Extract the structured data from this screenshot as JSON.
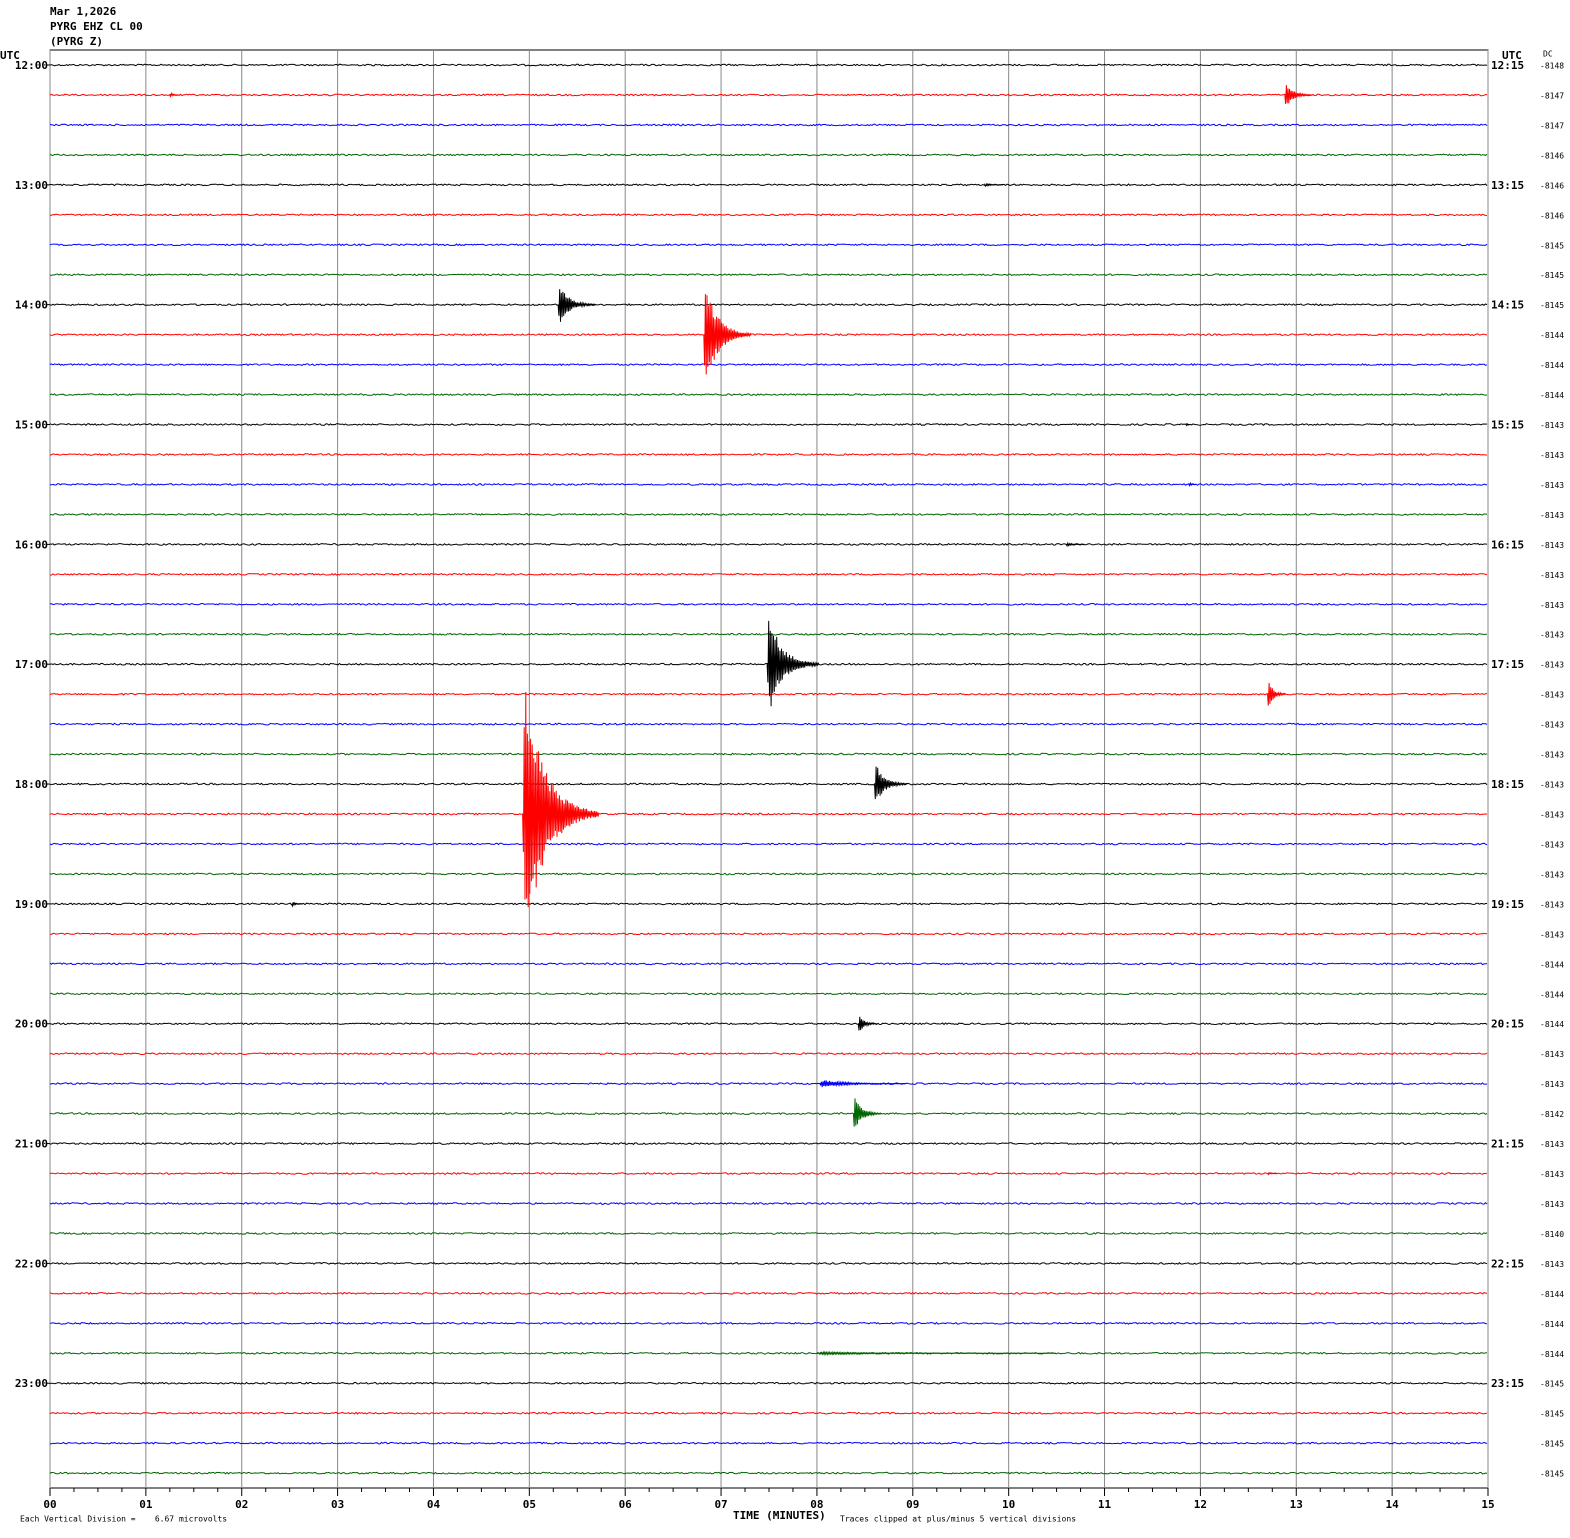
{
  "header": {
    "date": "Mar 1,2026",
    "station": "PYRG EHZ CL 00",
    "component": "(PYRG Z)"
  },
  "left_axis": {
    "title": "UTC",
    "labels": [
      "12:00",
      "13:00",
      "14:00",
      "15:00",
      "16:00",
      "17:00",
      "18:00",
      "19:00",
      "20:00",
      "21:00",
      "22:00",
      "23:00"
    ]
  },
  "right_axis": {
    "title": "UTC",
    "labels": [
      "12:15",
      "13:15",
      "14:15",
      "15:15",
      "16:15",
      "17:15",
      "18:15",
      "19:15",
      "20:15",
      "21:15",
      "22:15",
      "23:15"
    ]
  },
  "dc": {
    "title": "DC",
    "values": [
      -8148,
      -8147,
      -8147,
      -8146,
      -8146,
      -8146,
      -8145,
      -8145,
      -8145,
      -8144,
      -8144,
      -8144,
      -8143,
      -8143,
      -8143,
      -8143,
      -8143,
      -8143,
      -8143,
      -8143,
      -8143,
      -8143,
      -8143,
      -8143,
      -8143,
      -8143,
      -8143,
      -8143,
      -8143,
      -8143,
      -8144,
      -8144,
      -8144,
      -8143,
      -8143,
      -8142,
      -8143,
      -8143,
      -8143,
      -8140,
      -8143,
      -8144,
      -8144,
      -8144,
      -8145,
      -8145,
      -8145,
      -8145
    ]
  },
  "trace_colors": [
    "#000000",
    "#ff0000",
    "#0000ff",
    "#006400"
  ],
  "x_axis": {
    "title": "TIME (MINUTES)",
    "xlim": [
      0,
      15
    ],
    "xticks": [
      {
        "value": 0,
        "label": "00"
      },
      {
        "value": 1,
        "label": "01"
      },
      {
        "value": 2,
        "label": "02"
      },
      {
        "value": 3,
        "label": "03"
      },
      {
        "value": 4,
        "label": "04"
      },
      {
        "value": 5,
        "label": "05"
      },
      {
        "value": 6,
        "label": "06"
      },
      {
        "value": 7,
        "label": "07"
      },
      {
        "value": 8,
        "label": "08"
      },
      {
        "value": 9,
        "label": "09"
      },
      {
        "value": 10,
        "label": "10"
      },
      {
        "value": 11,
        "label": "11"
      },
      {
        "value": 12,
        "label": "12"
      },
      {
        "value": 13,
        "label": "13"
      },
      {
        "value": 14,
        "label": "14"
      },
      {
        "value": 15,
        "label": "15"
      }
    ]
  },
  "footer": {
    "scale": "Each Vertical Division =    6.67 microvolts",
    "clip": "Traces clipped at plus/minus 5 vertical divisions"
  },
  "events": [
    {
      "row": 1,
      "minute": 12.88,
      "amplitude": 0.5,
      "duration": 0.3
    },
    {
      "row": 1,
      "minute": 1.25,
      "amplitude": 0.1,
      "duration": 0.1
    },
    {
      "row": 4,
      "minute": 9.75,
      "amplitude": 0.06,
      "duration": 0.2
    },
    {
      "row": 8,
      "minute": 5.3,
      "amplitude": 0.75,
      "duration": 0.4
    },
    {
      "row": 9,
      "minute": 6.82,
      "amplitude": 2.1,
      "duration": 0.5
    },
    {
      "row": 12,
      "minute": 11.85,
      "amplitude": 0.08,
      "duration": 0.05
    },
    {
      "row": 14,
      "minute": 11.88,
      "amplitude": 0.1,
      "duration": 0.08
    },
    {
      "row": 16,
      "minute": 10.6,
      "amplitude": 0.06,
      "duration": 0.2
    },
    {
      "row": 20,
      "minute": 7.48,
      "amplitude": 1.9,
      "duration": 0.55
    },
    {
      "row": 21,
      "minute": 12.7,
      "amplitude": 0.6,
      "duration": 0.2
    },
    {
      "row": 24,
      "minute": 8.6,
      "amplitude": 0.8,
      "duration": 0.35
    },
    {
      "row": 25,
      "minute": 4.93,
      "amplitude": 5,
      "duration": 0.8
    },
    {
      "row": 28,
      "minute": 2.52,
      "amplitude": 0.1,
      "duration": 0.12
    },
    {
      "row": 32,
      "minute": 8.43,
      "amplitude": 0.4,
      "duration": 0.2
    },
    {
      "row": 34,
      "minute": 8.03,
      "amplitude": 0.15,
      "duration": 0.9
    },
    {
      "row": 35,
      "minute": 8.38,
      "amplitude": 0.7,
      "duration": 0.3
    },
    {
      "row": 37,
      "minute": 12.7,
      "amplitude": 0.06,
      "duration": 0.1
    },
    {
      "row": 43,
      "minute": 8.0,
      "amplitude": 0.05,
      "duration": 2.5
    }
  ]
}
